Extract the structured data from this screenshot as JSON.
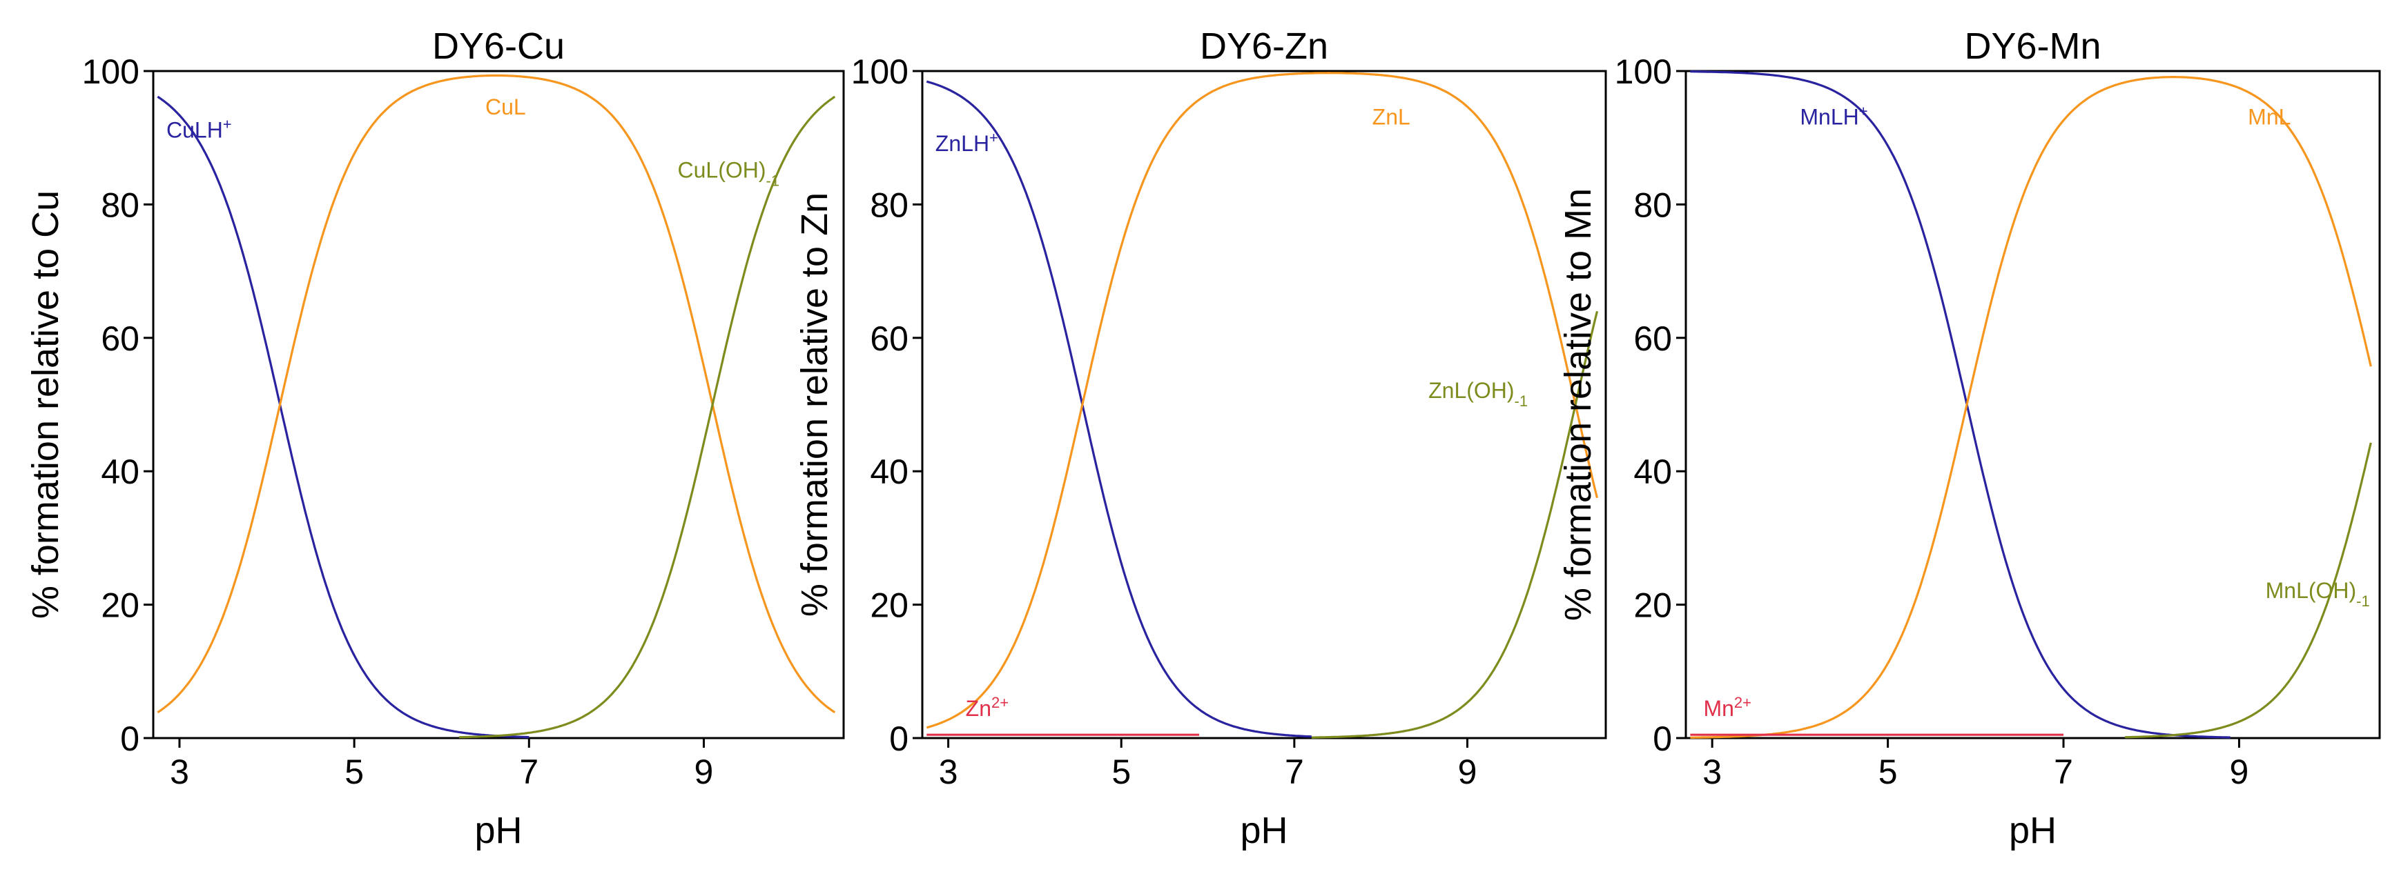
{
  "colors": {
    "ligand_protonated": "#2a23a0",
    "complex": "#f7961e",
    "hydroxo": "#7e8b1d",
    "free_metal": "#e0304a",
    "axis": "#000000"
  },
  "chart_data": [
    {
      "type": "line",
      "title": "DY6-Cu",
      "xlabel": "pH",
      "ylabel": "% formation relative to Cu",
      "xlim": [
        2.7,
        10.6
      ],
      "ylim": [
        0,
        100
      ],
      "xticks": [
        3,
        5,
        7,
        9
      ],
      "yticks": [
        0,
        20,
        40,
        60,
        80,
        100
      ],
      "series": [
        {
          "name": "CuLH+",
          "label_main": "CuLH",
          "label_sup": "+",
          "label_sub": "",
          "color_key": "ligand_protonated",
          "kind": "fall",
          "x0": 4.15,
          "k": 2.3,
          "xmin": 2.75,
          "xmax": 7.0,
          "label_at": [
            2.85,
            90
          ]
        },
        {
          "name": "CuL",
          "label_main": "CuL",
          "label_sup": "",
          "label_sub": "",
          "color_key": "complex",
          "kind": "bell",
          "x0": 4.15,
          "x1": 9.1,
          "k": 2.3,
          "k2": 2.3,
          "xmin": 2.75,
          "xmax": 10.5,
          "label_at": [
            6.5,
            93.5
          ]
        },
        {
          "name": "CuL(OH)-1",
          "label_main": "CuL(OH)",
          "label_sup": "",
          "label_sub": "-1",
          "color_key": "hydroxo",
          "kind": "rise",
          "x0": 9.1,
          "k": 2.3,
          "xmin": 6.2,
          "xmax": 10.5,
          "label_at": [
            8.7,
            84
          ]
        }
      ]
    },
    {
      "type": "line",
      "title": "DY6-Zn",
      "xlabel": "pH",
      "ylabel": "% formation relative to Zn",
      "xlim": [
        2.7,
        10.6
      ],
      "ylim": [
        0,
        100
      ],
      "xticks": [
        3,
        5,
        7,
        9
      ],
      "yticks": [
        0,
        20,
        40,
        60,
        80,
        100
      ],
      "series": [
        {
          "name": "ZnLH+",
          "label_main": "ZnLH",
          "label_sup": "+",
          "label_sub": "",
          "color_key": "ligand_protonated",
          "kind": "fall",
          "x0": 4.55,
          "k": 2.3,
          "xmin": 2.75,
          "xmax": 7.2,
          "label_at": [
            2.85,
            88
          ]
        },
        {
          "name": "ZnL",
          "label_main": "ZnL",
          "label_sup": "",
          "label_sub": "",
          "color_key": "complex",
          "kind": "bell",
          "x0": 4.55,
          "x1": 10.25,
          "k": 2.3,
          "k2": 2.3,
          "xmin": 2.75,
          "xmax": 10.5,
          "label_at": [
            7.9,
            92
          ]
        },
        {
          "name": "ZnL(OH)-1",
          "label_main": "ZnL(OH)",
          "label_sup": "",
          "label_sub": "-1",
          "color_key": "hydroxo",
          "kind": "rise",
          "x0": 10.25,
          "k": 2.3,
          "xmin": 7.2,
          "xmax": 10.5,
          "label_at": [
            8.55,
            51
          ]
        },
        {
          "name": "Zn2+",
          "label_main": "Zn",
          "label_sup": "2+",
          "label_sub": "",
          "color_key": "free_metal",
          "kind": "flat",
          "y": 0.5,
          "xmin": 2.75,
          "xmax": 5.9,
          "label_at": [
            3.2,
            3.3
          ]
        }
      ]
    },
    {
      "type": "line",
      "title": "DY6-Mn",
      "xlabel": "pH",
      "ylabel": "% formation relative to Mn",
      "xlim": [
        2.7,
        10.6
      ],
      "ylim": [
        0,
        100
      ],
      "xticks": [
        3,
        5,
        7,
        9
      ],
      "yticks": [
        0,
        20,
        40,
        60,
        80,
        100
      ],
      "series": [
        {
          "name": "MnLH+",
          "label_main": "MnLH",
          "label_sup": "+",
          "label_sub": "",
          "color_key": "ligand_protonated",
          "kind": "fall",
          "x0": 5.9,
          "k": 2.3,
          "xmin": 2.75,
          "xmax": 8.9,
          "label_at": [
            4.0,
            92
          ]
        },
        {
          "name": "MnL",
          "label_main": "MnL",
          "label_sup": "",
          "label_sub": "",
          "color_key": "complex",
          "kind": "bell",
          "x0": 5.9,
          "x1": 10.6,
          "k": 2.3,
          "k2": 2.3,
          "xmin": 2.75,
          "xmax": 10.5,
          "label_at": [
            9.1,
            92
          ]
        },
        {
          "name": "MnL(OH)-1",
          "label_main": "MnL(OH)",
          "label_sup": "",
          "label_sub": "-1",
          "color_key": "hydroxo",
          "kind": "rise",
          "x0": 10.6,
          "k": 2.3,
          "xmin": 7.7,
          "xmax": 10.5,
          "label_at": [
            9.3,
            21
          ]
        },
        {
          "name": "Mn2+",
          "label_main": "Mn",
          "label_sup": "2+",
          "label_sub": "",
          "color_key": "free_metal",
          "kind": "flat",
          "y": 0.5,
          "xmin": 2.75,
          "xmax": 7.0,
          "label_at": [
            2.9,
            3.3
          ]
        }
      ]
    }
  ]
}
